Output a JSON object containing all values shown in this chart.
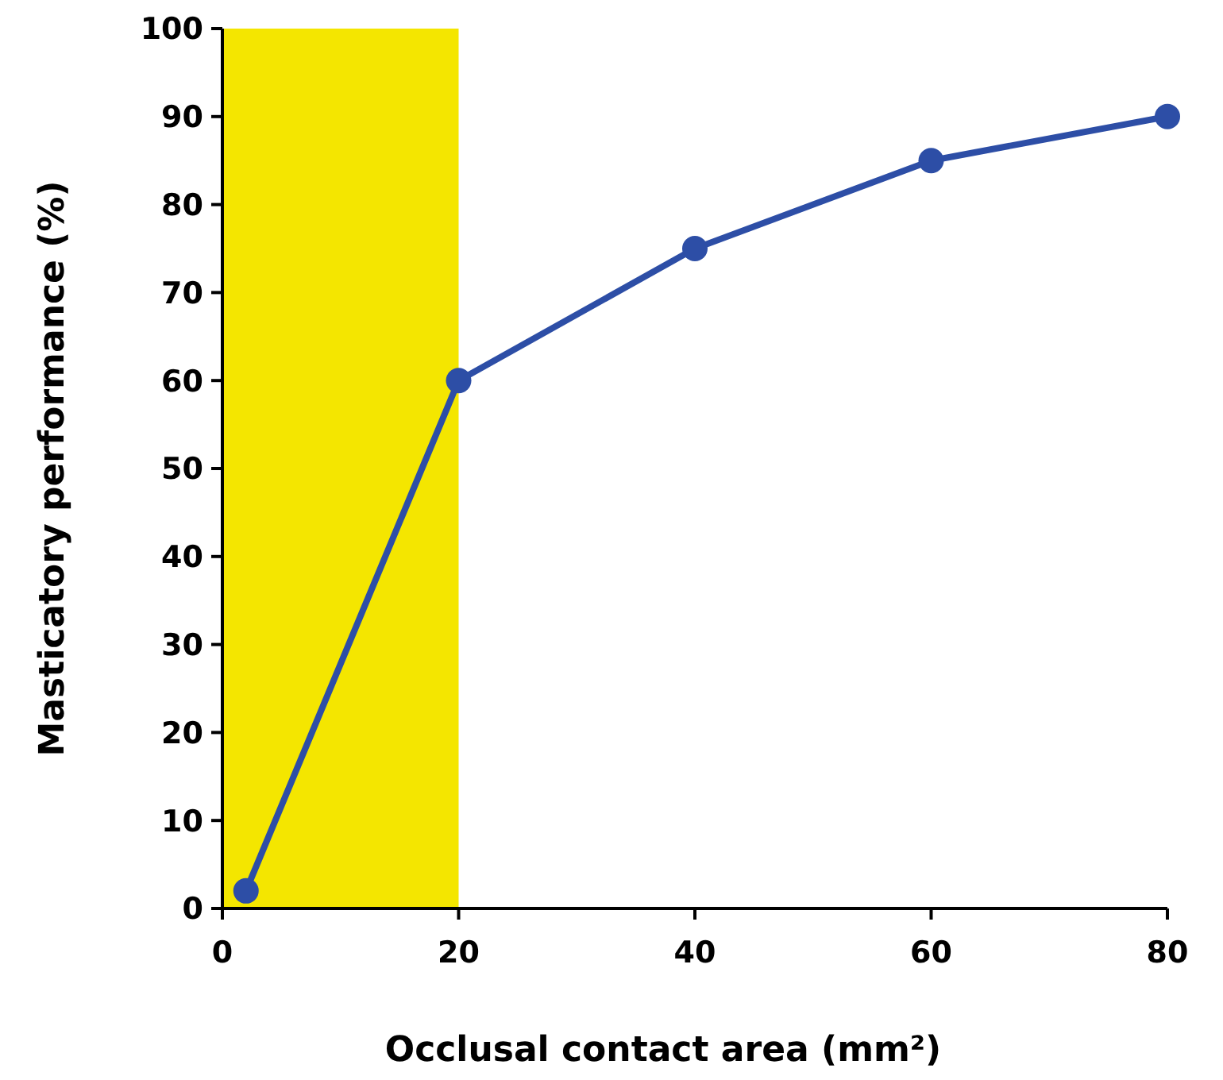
{
  "chart_data": {
    "type": "line",
    "xlabel": "Occlusal contact area (mm²)",
    "ylabel": "Masticatory performance (%)",
    "x": [
      2,
      20,
      40,
      60,
      80
    ],
    "series": [
      {
        "color": "#2d4ea6",
        "values": [
          2,
          60,
          75,
          85,
          90
        ]
      }
    ],
    "xlim": [
      0,
      80
    ],
    "xticks": [
      0,
      20,
      40,
      60,
      80
    ],
    "ylim": [
      0,
      100
    ],
    "yticks": [
      0,
      10,
      20,
      30,
      40,
      50,
      60,
      70,
      80,
      90,
      100
    ],
    "bands": [
      {
        "axis": "x",
        "from": 0,
        "to": 20,
        "color": "#f4e600"
      }
    ],
    "marker": "circle",
    "line_style": "solid"
  }
}
